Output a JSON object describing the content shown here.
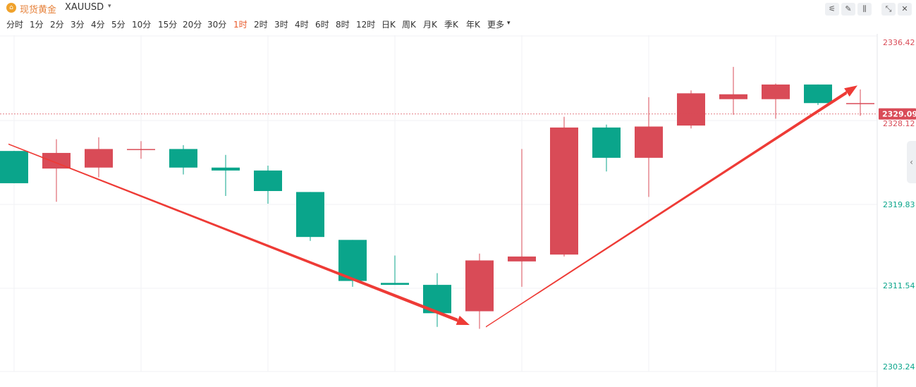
{
  "header": {
    "symbol_name": "现货黄金",
    "symbol_code": "XAUUSD",
    "dropdown_glyph": "▾",
    "tools": [
      {
        "name": "indicator-icon",
        "glyph": "⚟"
      },
      {
        "name": "draw-icon",
        "glyph": "✎"
      },
      {
        "name": "candle-style-icon",
        "glyph": "⫼"
      },
      {
        "name": "shrink-icon",
        "glyph": "⤡"
      },
      {
        "name": "close-icon",
        "glyph": "✕"
      }
    ]
  },
  "intervals": {
    "items": [
      "分时",
      "1分",
      "2分",
      "3分",
      "4分",
      "5分",
      "10分",
      "15分",
      "20分",
      "30分",
      "1时",
      "2时",
      "3时",
      "4时",
      "6时",
      "8时",
      "12时",
      "日K",
      "周K",
      "月K",
      "季K",
      "年K",
      "更多"
    ],
    "active": "1时",
    "more_caret": "▾"
  },
  "side_tab": {
    "glyph": "‹"
  },
  "colors": {
    "up": "#d94b57",
    "down": "#0aa58b",
    "arrow": "#ee3b36",
    "price_tag": "#d94b57"
  },
  "chart_data": {
    "type": "candlestick",
    "y_axis": {
      "position": "right",
      "ticks": [
        2336.42,
        2328.12,
        2319.83,
        2311.54,
        2303.24
      ],
      "range": [
        2303.24,
        2336.42
      ]
    },
    "current_price": 2329.09,
    "candles": [
      {
        "o": 2325.3,
        "c": 2322.0,
        "h": 2325.3,
        "l": 2322.0
      },
      {
        "o": 2323.5,
        "c": 2325.1,
        "h": 2326.5,
        "l": 2320.1
      },
      {
        "o": 2323.6,
        "c": 2325.5,
        "h": 2326.7,
        "l": 2322.6
      },
      {
        "o": 2325.5,
        "c": 2325.5,
        "h": 2326.3,
        "l": 2324.5
      },
      {
        "o": 2325.5,
        "c": 2323.6,
        "h": 2325.9,
        "l": 2322.9
      },
      {
        "o": 2323.6,
        "c": 2323.3,
        "h": 2324.9,
        "l": 2320.7
      },
      {
        "o": 2323.3,
        "c": 2321.2,
        "h": 2323.8,
        "l": 2319.9
      },
      {
        "o": 2321.1,
        "c": 2316.5,
        "h": 2321.1,
        "l": 2316.1
      },
      {
        "o": 2316.2,
        "c": 2312.0,
        "h": 2316.2,
        "l": 2311.4
      },
      {
        "o": 2311.8,
        "c": 2311.6,
        "h": 2314.6,
        "l": 2311.6
      },
      {
        "o": 2311.6,
        "c": 2308.7,
        "h": 2312.8,
        "l": 2307.3
      },
      {
        "o": 2308.9,
        "c": 2314.1,
        "h": 2314.8,
        "l": 2307.1
      },
      {
        "o": 2314.0,
        "c": 2314.5,
        "h": 2325.5,
        "l": 2311.4
      },
      {
        "o": 2314.7,
        "c": 2327.7,
        "h": 2328.8,
        "l": 2314.5
      },
      {
        "o": 2327.7,
        "c": 2324.6,
        "h": 2328.0,
        "l": 2323.2
      },
      {
        "o": 2324.6,
        "c": 2327.8,
        "h": 2330.8,
        "l": 2320.6
      },
      {
        "o": 2327.9,
        "c": 2331.2,
        "h": 2331.5,
        "l": 2327.6
      },
      {
        "o": 2330.6,
        "c": 2331.1,
        "h": 2333.9,
        "l": 2329.0
      },
      {
        "o": 2330.6,
        "c": 2332.1,
        "h": 2332.2,
        "l": 2328.6
      },
      {
        "o": 2332.1,
        "c": 2330.2,
        "h": 2332.1,
        "l": 2330.0
      },
      {
        "o": 2330.2,
        "c": 2330.2,
        "h": 2331.6,
        "l": 2328.9
      }
    ],
    "arrows": [
      {
        "from": {
          "index": 0,
          "price": 2326.0
        },
        "to": {
          "index": 11,
          "price": 2307.5
        }
      },
      {
        "from": {
          "index": 11,
          "price": 2307.3
        },
        "to": {
          "index": 20,
          "price": 2332.0
        }
      }
    ]
  }
}
